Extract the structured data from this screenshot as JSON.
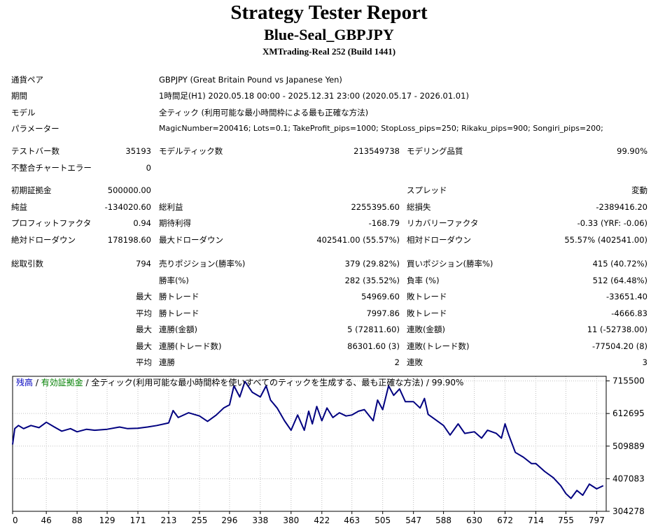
{
  "report": {
    "title": "Strategy Tester Report",
    "subtitle": "Blue-Seal_GBPJPY",
    "server": "XMTrading-Real 252 (Build 1441)"
  },
  "info": {
    "symbol_label": "通貨ペア",
    "symbol_value": "GBPJPY (Great Britain Pound vs Japanese Yen)",
    "period_label": "期間",
    "period_value": "1時間足(H1) 2020.05.18 00:00 - 2025.12.31 23:00 (2020.05.17 - 2026.01.01)",
    "model_label": "モデル",
    "model_value": "全ティック (利用可能な最小時間枠による最も正確な方法)",
    "params_label": "パラメーター",
    "params_value": "MagicNumber=200416; Lots=0.1; TakeProfit_pips=1000; StopLoss_pips=250; Rikaku_pips=900; Songiri_pips=200;"
  },
  "stats": {
    "bars_label": "テストバー数",
    "bars_value": "35193",
    "ticks_label": "モデルティック数",
    "ticks_value": "213549738",
    "quality_label": "モデリング品質",
    "quality_value": "99.90%",
    "mismatch_label": "不整合チャートエラー",
    "mismatch_value": "0",
    "deposit_label": "初期証拠金",
    "deposit_value": "500000.00",
    "spread_label": "スプレッド",
    "spread_value": "変動",
    "net_label": "純益",
    "net_value": "-134020.60",
    "gross_profit_label": "総利益",
    "gross_profit_value": "2255395.60",
    "gross_loss_label": "総損失",
    "gross_loss_value": "-2389416.20",
    "pf_label": "プロフィットファクタ",
    "pf_value": "0.94",
    "expected_label": "期待利得",
    "expected_value": "-168.79",
    "recovery_label": "リカバリーファクタ",
    "recovery_value": "-0.33 (YRF: -0.06)",
    "abs_dd_label": "絶対ドローダウン",
    "abs_dd_value": "178198.60",
    "max_dd_label": "最大ドローダウン",
    "max_dd_value": "402541.00 (55.57%)",
    "rel_dd_label": "相対ドローダウン",
    "rel_dd_value": "55.57% (402541.00)"
  },
  "trades": {
    "total_label": "総取引数",
    "total_value": "794",
    "short_label": "売りポジション(勝率%)",
    "short_value": "379 (29.82%)",
    "long_label": "買いポジション(勝率%)",
    "long_value": "415 (40.72%)",
    "winrate_label": "勝率(%)",
    "winrate_value": "282 (35.52%)",
    "lossrate_label": "負率 (%)",
    "lossrate_value": "512 (64.48%)",
    "max_label": "最大",
    "avg_label": "平均",
    "max_win_label": "勝トレード",
    "max_win_value": "54969.60",
    "max_loss_label": "敗トレード",
    "max_loss_value": "-33651.40",
    "avg_win_label": "勝トレード",
    "avg_win_value": "7997.86",
    "avg_loss_label": "敗トレード",
    "avg_loss_value": "-4666.83",
    "max2_label": "最大",
    "cons_wins_money_label": "連勝(金額)",
    "cons_wins_money_value": "5 (72811.60)",
    "cons_loss_money_label": "連敗(金額)",
    "cons_loss_money_value": "11 (-52738.00)",
    "max3_label": "最大",
    "cons_wins_count_label": "連勝(トレード数)",
    "cons_wins_count_value": "86301.60 (3)",
    "cons_loss_count_label": "連敗(トレード数)",
    "cons_loss_count_value": "-77504.20 (8)",
    "avg2_label": "平均",
    "avg_cons_wins_label": "連勝",
    "avg_cons_wins_value": "2",
    "avg_cons_loss_label": "連敗",
    "avg_cons_loss_value": "3"
  },
  "chart_data": {
    "type": "line",
    "legend": {
      "balance": "残高",
      "sep1": " / ",
      "equity": "有効証拠金",
      "sep2": " / ",
      "model": "全ティック(利用可能な最小時間枠を使いすべてのティックを生成する、最も正確な方法)",
      "sep3": " / ",
      "quality": "99.90%"
    },
    "colors": {
      "balance": "#000080",
      "balance_legend": "#0000c0",
      "equity_legend": "#008000",
      "grid": "#c0c0c0"
    },
    "x_ticks": [
      0,
      46,
      88,
      129,
      171,
      213,
      255,
      296,
      338,
      380,
      422,
      463,
      505,
      547,
      588,
      630,
      672,
      714,
      755,
      797
    ],
    "y_ticks": [
      715500,
      612695,
      509889,
      407083,
      304278
    ],
    "xlim": [
      0,
      810
    ],
    "ylim": [
      304278,
      730000
    ],
    "series": [
      {
        "x": [
          0,
          3,
          8,
          15,
          25,
          36,
          46,
          57,
          67,
          79,
          88,
          101,
          112,
          129,
          146,
          157,
          171,
          184,
          197,
          213,
          219,
          226,
          240,
          255,
          266,
          278,
          288,
          296,
          302,
          310,
          317,
          327,
          338,
          346,
          352,
          361,
          371,
          380,
          389,
          398,
          404,
          409,
          415,
          422,
          429,
          437,
          446,
          455,
          463,
          472,
          480,
          492,
          498,
          505,
          513,
          520,
          528,
          536,
          547,
          556,
          562,
          567,
          576,
          588,
          597,
          608,
          617,
          630,
          640,
          648,
          660,
          667,
          672,
          677,
          686,
          697,
          708,
          714,
          726,
          738,
          748,
          755,
          762,
          770,
          778,
          787,
          797,
          806
        ],
        "y": [
          515000,
          565000,
          575000,
          565000,
          575000,
          568000,
          585000,
          570000,
          557000,
          565000,
          555000,
          563000,
          560000,
          563000,
          570000,
          565000,
          566000,
          570000,
          575000,
          583000,
          622000,
          600000,
          615000,
          605000,
          588000,
          608000,
          630000,
          640000,
          700000,
          665000,
          714000,
          680000,
          665000,
          700000,
          655000,
          630000,
          590000,
          560000,
          608000,
          560000,
          620000,
          580000,
          635000,
          590000,
          630000,
          600000,
          615000,
          605000,
          608000,
          620000,
          625000,
          590000,
          655000,
          625000,
          700000,
          670000,
          690000,
          650000,
          650000,
          630000,
          660000,
          610000,
          595000,
          575000,
          545000,
          580000,
          550000,
          555000,
          535000,
          560000,
          550000,
          535000,
          580000,
          545000,
          490000,
          475000,
          455000,
          455000,
          430000,
          410000,
          385000,
          360000,
          345000,
          370000,
          355000,
          390000,
          375000,
          385000
        ]
      }
    ]
  }
}
